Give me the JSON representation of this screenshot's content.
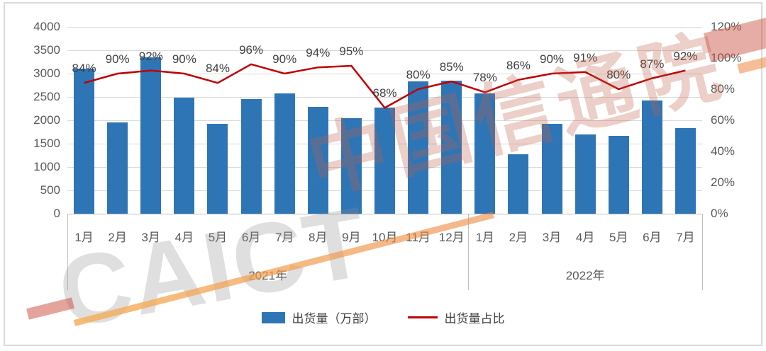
{
  "watermark": {
    "cn": "中国信通院",
    "en": "CAICT"
  },
  "legend": {
    "bars_label": "出货量（万部）",
    "line_label": "出货量占比"
  },
  "chart_data": {
    "type": "bar",
    "subtype": "bar+line combo",
    "categories": [
      "1月",
      "2月",
      "3月",
      "4月",
      "5月",
      "6月",
      "7月",
      "8月",
      "9月",
      "10月",
      "11月",
      "12月",
      "1月",
      "2月",
      "3月",
      "4月",
      "5月",
      "6月",
      "7月"
    ],
    "group_labels": [
      {
        "label": "2021年",
        "span": 12
      },
      {
        "label": "2022年",
        "span": 7
      }
    ],
    "series": [
      {
        "name": "出货量（万部）",
        "type": "bar",
        "axis": "left",
        "color": "#2E75B6",
        "values": [
          3100,
          1950,
          3350,
          2480,
          1930,
          2460,
          2580,
          2290,
          2050,
          2280,
          2830,
          2850,
          2580,
          1280,
          1920,
          1700,
          1660,
          2420,
          1840
        ]
      },
      {
        "name": "出货量占比",
        "type": "line",
        "axis": "right",
        "color": "#C00000",
        "values_pct": [
          84,
          90,
          92,
          90,
          84,
          96,
          90,
          94,
          95,
          68,
          80,
          85,
          78,
          86,
          90,
          91,
          80,
          87,
          92
        ]
      }
    ],
    "left_axis": {
      "min": 0,
      "max": 4000,
      "step": 500
    },
    "right_axis": {
      "min": 0,
      "max": 120,
      "step": 20,
      "suffix": "%"
    },
    "grid": "horizontal",
    "legend_position": "bottom"
  }
}
